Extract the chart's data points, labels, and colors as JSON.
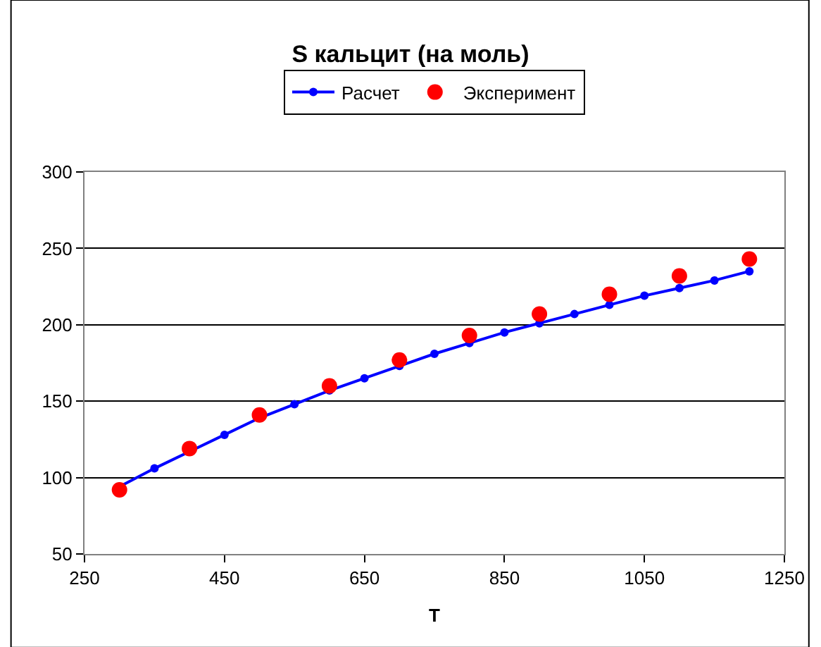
{
  "chart_data": {
    "type": "line",
    "title": "S кальцит (на моль)",
    "xlabel": "T",
    "xlim": [
      250,
      1250
    ],
    "xticks": [
      250,
      450,
      650,
      850,
      1050,
      1250
    ],
    "ylim": [
      50,
      300
    ],
    "yticks": [
      50,
      100,
      150,
      200,
      250,
      300
    ],
    "grid": "y",
    "legend": "top",
    "series": [
      {
        "name": "Расчет",
        "color": "#0000ff",
        "marker": "circle",
        "x": [
          300,
          350,
          400,
          450,
          500,
          550,
          600,
          650,
          700,
          750,
          800,
          850,
          900,
          950,
          1000,
          1050,
          1100,
          1150,
          1200
        ],
        "values": [
          94,
          106,
          117,
          128,
          139,
          148,
          157,
          165,
          173,
          181,
          188,
          195,
          201,
          207,
          213,
          219,
          224,
          229,
          235
        ]
      },
      {
        "name": "Эксперимент",
        "type": "scatter",
        "color": "#ff0000",
        "marker": "circle",
        "x": [
          300,
          400,
          500,
          600,
          700,
          800,
          900,
          1000,
          1100,
          1200
        ],
        "values": [
          92,
          119,
          141,
          160,
          177,
          193,
          207,
          220,
          232,
          243
        ]
      }
    ]
  }
}
